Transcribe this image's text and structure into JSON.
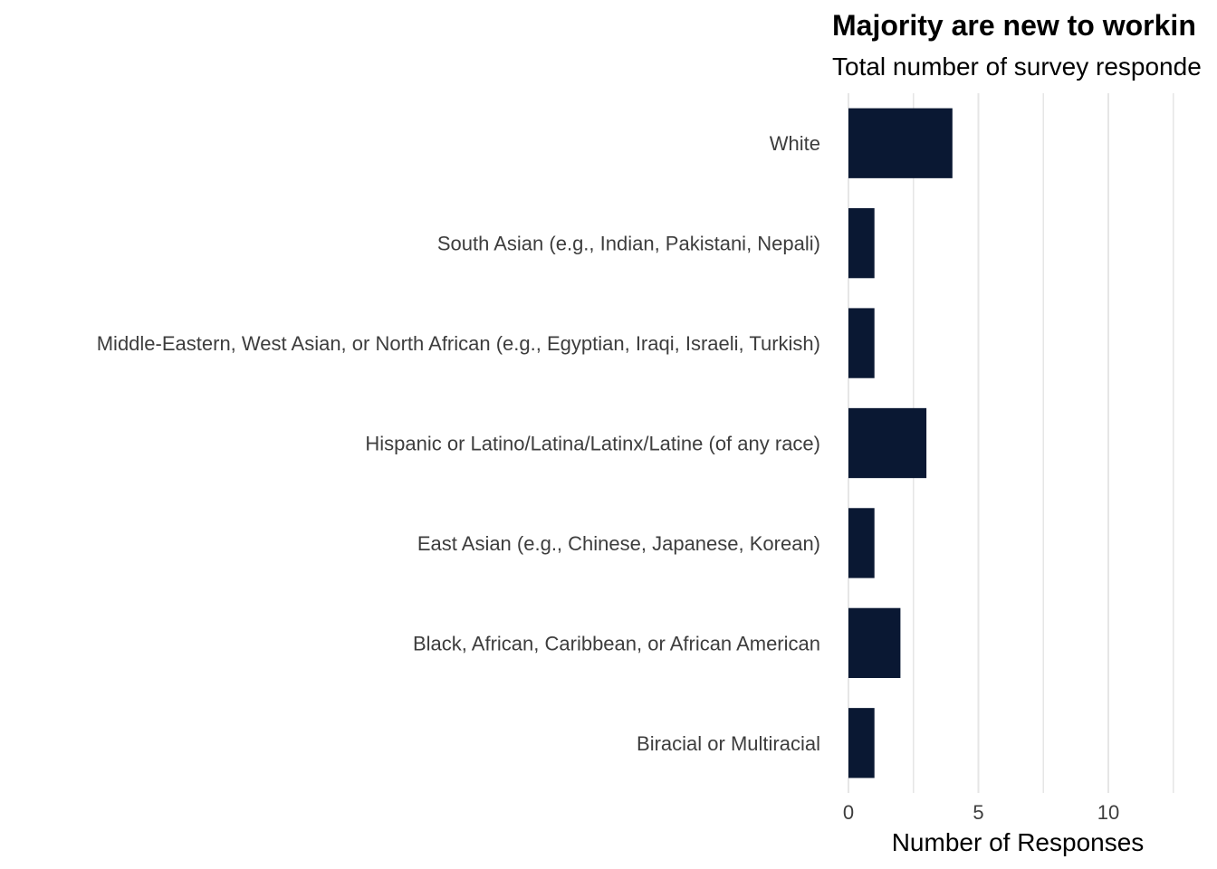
{
  "chart_data": {
    "type": "bar",
    "orientation": "horizontal",
    "title": "Majority are new to workin",
    "subtitle": "Total number of survey responde",
    "xlabel": "Number of Responses",
    "ylabel": "",
    "xlim": [
      0,
      13
    ],
    "x_ticks": [
      0,
      5,
      10
    ],
    "grid": "vertical",
    "legend": "none",
    "bar_color": "#0a1833",
    "grid_color": "#e6e6e6",
    "categories": [
      "White",
      "South Asian (e.g., Indian, Pakistani, Nepali)",
      "Middle-Eastern, West Asian, or North African (e.g., Egyptian, Iraqi, Israeli, Turkish)",
      "Hispanic or Latino/Latina/Latinx/Latine (of any race)",
      "East Asian (e.g., Chinese, Japanese, Korean)",
      "Black, African, Caribbean, or African American",
      "Biracial or Multiracial"
    ],
    "values": [
      4,
      1,
      1,
      3,
      1,
      2,
      1
    ]
  }
}
